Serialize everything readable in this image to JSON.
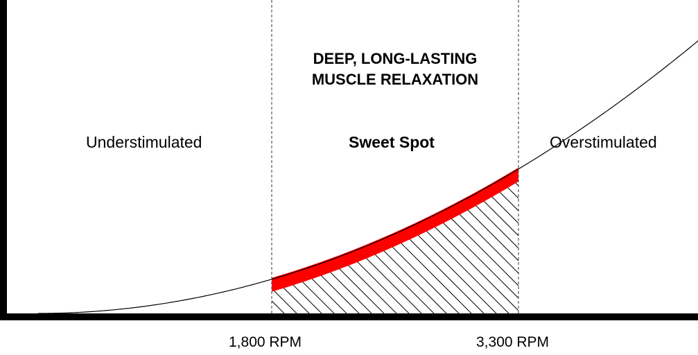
{
  "diagram": {
    "title_lines": [
      "DEEP, LONG-LASTING",
      "MUSCLE RELAXATION"
    ],
    "zones": {
      "left": "Understimulated",
      "middle": "Sweet Spot",
      "right": "Overstimulated"
    },
    "thresholds": [
      {
        "label": "1,800 RPM",
        "value": 1800
      },
      {
        "label": "3,300 RPM",
        "value": 3300
      }
    ],
    "colors": {
      "highlight": "#ff0000",
      "curve": "#000000",
      "axis": "#000000",
      "background": "#ffffff"
    }
  }
}
